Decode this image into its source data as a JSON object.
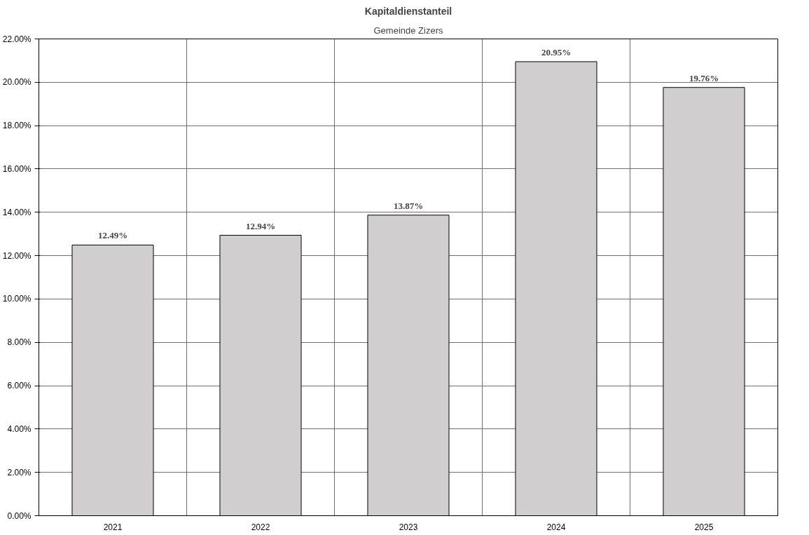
{
  "chart_data": {
    "type": "bar",
    "title": "Kapitaldienstanteil",
    "subtitle": "Gemeinde Zizers",
    "categories": [
      "2021",
      "2022",
      "2023",
      "2024",
      "2025"
    ],
    "values": [
      12.49,
      12.94,
      13.87,
      20.95,
      19.76
    ],
    "value_labels": [
      "12.49%",
      "12.94%",
      "13.87%",
      "20.95%",
      "19.76%"
    ],
    "color": "#d0cece",
    "ylim": [
      0,
      22
    ],
    "yticks": [
      {
        "value": 0,
        "label": "0.00%"
      },
      {
        "value": 2,
        "label": "2.00%"
      },
      {
        "value": 4,
        "label": "4.00%"
      },
      {
        "value": 6,
        "label": "6.00%"
      },
      {
        "value": 8,
        "label": "8.00%"
      },
      {
        "value": 10,
        "label": "10.00%"
      },
      {
        "value": 12,
        "label": "12.00%"
      },
      {
        "value": 14,
        "label": "14.00%"
      },
      {
        "value": 16,
        "label": "16.00%"
      },
      {
        "value": 18,
        "label": "18.00%"
      },
      {
        "value": 20,
        "label": "20.00%"
      },
      {
        "value": 22,
        "label": "22.00%"
      }
    ],
    "grid": true
  }
}
